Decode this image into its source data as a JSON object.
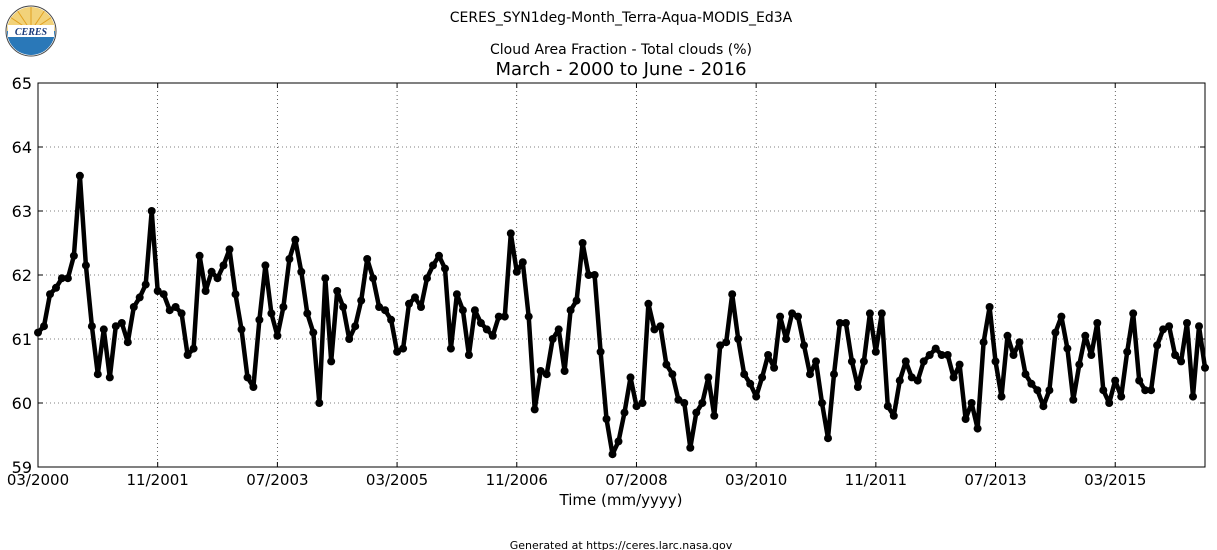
{
  "chart_data": {
    "type": "line",
    "title": "CERES_SYN1deg-Month_Terra-Aqua-MODIS_Ed3A",
    "subtitle": "Cloud Area Fraction - Total clouds (%)",
    "subtitle2": "March - 2000 to June - 2016",
    "xlabel": "Time (mm/yyyy)",
    "ylabel": "",
    "ylim": [
      59,
      65
    ],
    "yticks": [
      "59",
      "60",
      "61",
      "62",
      "63",
      "64",
      "65"
    ],
    "xticks": [
      "03/2000",
      "11/2001",
      "07/2003",
      "03/2005",
      "11/2006",
      "07/2008",
      "03/2010",
      "11/2011",
      "07/2013",
      "03/2015"
    ],
    "x_start": "03/2000",
    "x_end": "06/2016",
    "grid": true,
    "series": [
      {
        "values": [
          61.1,
          61.2,
          61.7,
          61.8,
          61.95,
          61.95,
          62.3,
          63.55,
          62.15,
          61.2,
          60.45,
          61.15,
          60.4,
          61.2,
          61.25,
          60.95,
          61.5,
          61.65,
          61.85,
          63.0,
          61.75,
          61.7,
          61.45,
          61.5,
          61.4,
          60.75,
          60.85,
          62.3,
          61.75,
          62.05,
          61.95,
          62.15,
          62.4,
          61.7,
          61.15,
          60.4,
          60.25,
          61.3,
          62.15,
          61.4,
          61.05,
          61.5,
          62.25,
          62.55,
          62.05,
          61.4,
          61.1,
          60.0,
          61.95,
          60.65,
          61.75,
          61.5,
          61.0,
          61.2,
          61.6,
          62.25,
          61.95,
          61.5,
          61.45,
          61.3,
          60.8,
          60.85,
          61.55,
          61.65,
          61.5,
          61.95,
          62.15,
          62.3,
          62.1,
          60.85,
          61.7,
          61.45,
          60.75,
          61.45,
          61.25,
          61.15,
          61.05,
          61.35,
          61.35,
          62.65,
          62.05,
          62.2,
          61.35,
          59.9,
          60.5,
          60.45,
          61.0,
          61.15,
          60.5,
          61.45,
          61.6,
          62.5,
          62.0,
          62.0,
          60.8,
          59.75,
          59.2,
          59.4,
          59.85,
          60.4,
          59.95,
          60.0,
          61.55,
          61.15,
          61.2,
          60.6,
          60.45,
          60.05,
          60.0,
          59.3,
          59.85,
          60.0,
          60.4,
          59.8,
          60.9,
          60.95,
          61.7,
          61.0,
          60.45,
          60.3,
          60.1,
          60.4,
          60.75,
          60.55,
          61.35,
          61.0,
          61.4,
          61.35,
          60.9,
          60.45,
          60.65,
          60.0,
          59.45,
          60.45,
          61.25,
          61.25,
          60.65,
          60.25,
          60.65,
          61.4,
          60.8,
          61.4,
          59.95,
          59.8,
          60.35,
          60.65,
          60.4,
          60.35,
          60.65,
          60.75,
          60.85,
          60.75,
          60.75,
          60.4,
          60.6,
          59.75,
          60.0,
          59.6,
          60.95,
          61.5,
          60.65,
          60.1,
          61.05,
          60.75,
          60.95,
          60.45,
          60.3,
          60.2,
          59.95,
          60.2,
          61.1,
          61.35,
          60.85,
          60.05,
          60.6,
          61.05,
          60.75,
          61.25,
          60.2,
          60.0,
          60.35,
          60.1,
          60.8,
          61.4,
          60.35,
          60.2,
          60.2,
          60.9,
          61.15,
          61.2,
          60.75,
          60.65,
          61.25,
          60.1,
          61.2,
          60.55
        ],
        "color": "#000000"
      }
    ],
    "footer": "Generated at https://ceres.larc.nasa.gov",
    "logo_text": "CERES"
  }
}
